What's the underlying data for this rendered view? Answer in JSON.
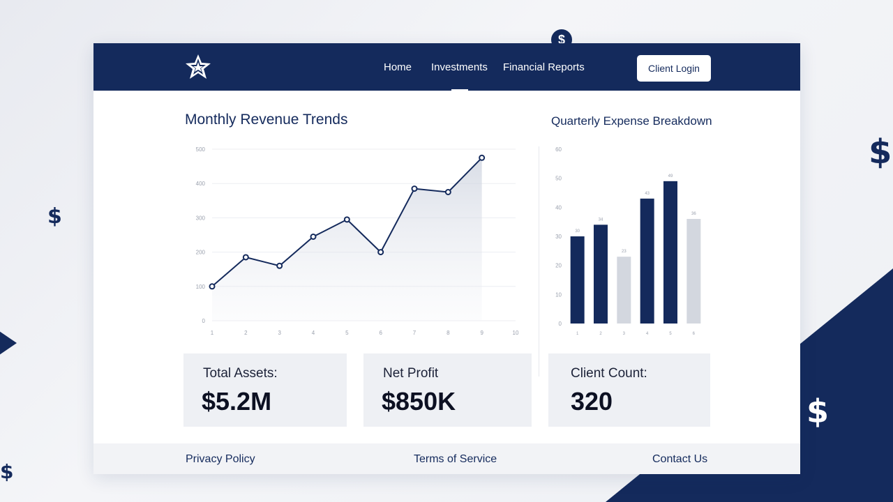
{
  "nav": {
    "logo_icon": "star-logo-icon",
    "items": [
      {
        "label": "Home"
      },
      {
        "label": "Investments"
      },
      {
        "label": "Financial Reports"
      }
    ],
    "login_label": "Client Login"
  },
  "revenue_section": {
    "title": "Monthly Revenue Trends"
  },
  "expense_section": {
    "title": "Quarterly Expense Breakdown"
  },
  "stats": [
    {
      "label": "Total Assets:",
      "value": "$5.2M"
    },
    {
      "label": "Net Profit",
      "value": "$850K"
    },
    {
      "label": "Client Count:",
      "value": "320"
    }
  ],
  "footer": {
    "privacy": "Privacy Policy",
    "terms": "Terms of Service",
    "contact": "Contact Us"
  },
  "colors": {
    "navy": "#142a5c",
    "light_bar": "#d3d7df",
    "background": "#eceef3"
  },
  "decor": {
    "dollar_glyph": "$"
  },
  "chart_data": [
    {
      "type": "line",
      "ylim": [
        0,
        500
      ],
      "yticks": [
        "0",
        "100",
        "200",
        "300",
        "400",
        "500"
      ],
      "x": [
        "1",
        "2",
        "3",
        "4",
        "5",
        "6",
        "7",
        "8",
        "9",
        "10"
      ],
      "series": [
        {
          "values": [
            100,
            185,
            160,
            245,
            295,
            200,
            385,
            375,
            475,
            null
          ]
        }
      ],
      "fill_area": true,
      "grid": true
    },
    {
      "type": "bar",
      "ylim": [
        0,
        60
      ],
      "yticks": [
        "0",
        "10",
        "20",
        "30",
        "40",
        "50",
        "60"
      ],
      "categories": [
        "1",
        "2",
        "3",
        "4",
        "5",
        "6"
      ],
      "values": [
        30,
        34,
        23,
        43,
        49,
        36
      ],
      "value_labels": [
        "30",
        "34",
        "23",
        "43",
        "49",
        "36"
      ],
      "bar_colors": [
        "#142a5c",
        "#142a5c",
        "#d3d7df",
        "#142a5c",
        "#142a5c",
        "#d3d7df"
      ],
      "grid": false
    }
  ]
}
